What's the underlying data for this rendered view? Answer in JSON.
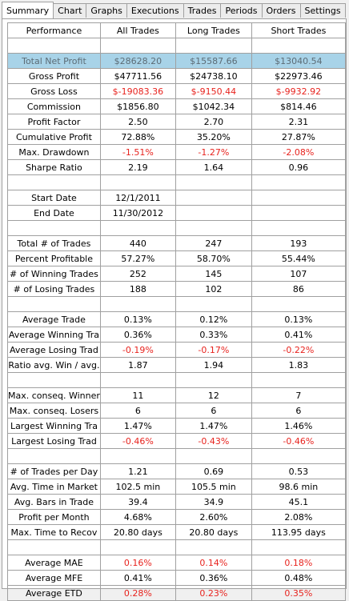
{
  "tabs": [
    "Summary",
    "Chart",
    "Graphs",
    "Executions",
    "Trades",
    "Periods",
    "Orders",
    "Settings"
  ],
  "selected_tab": 0,
  "table": {
    "header": [
      "Performance",
      "All Trades",
      "Long Trades",
      "Short Trades"
    ],
    "sections": [
      {
        "rows": [
          {
            "cells": [
              "Total Net Profit",
              "$28628.20",
              "$15587.66",
              "$13040.54"
            ],
            "highlight": true
          },
          {
            "cells": [
              "Gross Profit",
              "$47711.56",
              "$24738.10",
              "$22973.46"
            ]
          },
          {
            "cells": [
              "Gross Loss",
              "$-19083.36",
              "$-9150.44",
              "$-9932.92"
            ],
            "color": "#e8231e"
          },
          {
            "cells": [
              "Commission",
              "$1856.80",
              "$1042.34",
              "$814.46"
            ]
          },
          {
            "cells": [
              "Profit Factor",
              "2.50",
              "2.70",
              "2.31"
            ]
          },
          {
            "cells": [
              "Cumulative Profit",
              "72.88%",
              "35.20%",
              "27.87%"
            ]
          },
          {
            "cells": [
              "Max. Drawdown",
              "-1.51%",
              "-1.27%",
              "-2.08%"
            ],
            "color": "#e8231e"
          },
          {
            "cells": [
              "Sharpe Ratio",
              "2.19",
              "1.64",
              "0.96"
            ]
          }
        ]
      },
      {
        "rows": [
          {
            "cells": [
              "Start Date",
              "12/1/2011"
            ]
          },
          {
            "cells": [
              "End Date",
              "11/30/2012"
            ]
          }
        ]
      },
      {
        "rows": [
          {
            "cells": [
              "Total # of Trades",
              "440",
              "247",
              "193"
            ]
          },
          {
            "cells": [
              "Percent Profitable",
              "57.27%",
              "58.70%",
              "55.44%"
            ]
          },
          {
            "cells": [
              "# of Winning Trades",
              "252",
              "145",
              "107"
            ]
          },
          {
            "cells": [
              "# of Losing Trades",
              "188",
              "102",
              "86"
            ]
          }
        ]
      },
      {
        "rows": [
          {
            "cells": [
              "Average Trade",
              "0.13%",
              "0.12%",
              "0.13%"
            ]
          },
          {
            "cells": [
              "Average Winning Tra",
              "0.36%",
              "0.33%",
              "0.41%"
            ]
          },
          {
            "cells": [
              "Average Losing Trad",
              "-0.19%",
              "-0.17%",
              "-0.22%"
            ],
            "color": "#e8231e"
          },
          {
            "cells": [
              "Ratio avg. Win / avg.",
              "1.87",
              "1.94",
              "1.83"
            ]
          }
        ]
      },
      {
        "rows": [
          {
            "cells": [
              "Max. conseq. Winner",
              "11",
              "12",
              "7"
            ]
          },
          {
            "cells": [
              "Max. conseq. Losers",
              "6",
              "6",
              "6"
            ]
          },
          {
            "cells": [
              "Largest Winning Tra",
              "1.47%",
              "1.47%",
              "1.46%"
            ]
          },
          {
            "cells": [
              "Largest Losing Trad",
              "-0.46%",
              "-0.43%",
              "-0.46%"
            ],
            "color": "#e8231e"
          }
        ]
      },
      {
        "rows": [
          {
            "cells": [
              "# of Trades per Day",
              "1.21",
              "0.69",
              "0.53"
            ]
          },
          {
            "cells": [
              "Avg. Time in Market",
              "102.5 min",
              "105.5 min",
              "98.6 min"
            ]
          },
          {
            "cells": [
              "Avg. Bars in Trade",
              "39.4",
              "34.9",
              "45.1"
            ]
          },
          {
            "cells": [
              "Profit per Month",
              "4.68%",
              "2.60%",
              "2.08%"
            ]
          },
          {
            "cells": [
              "Max. Time to Recov",
              "20.80 days",
              "20.80 days",
              "113.95 days"
            ]
          }
        ]
      },
      {
        "rows": [
          {
            "cells": [
              "Average MAE",
              "0.16%",
              "0.14%",
              "0.18%"
            ],
            "color": "#e8231e"
          },
          {
            "cells": [
              "Average MFE",
              "0.41%",
              "0.36%",
              "0.48%"
            ]
          },
          {
            "cells": [
              "Average ETD",
              "0.28%",
              "0.23%",
              "0.35%"
            ],
            "color": "#e8231e"
          }
        ]
      }
    ]
  }
}
